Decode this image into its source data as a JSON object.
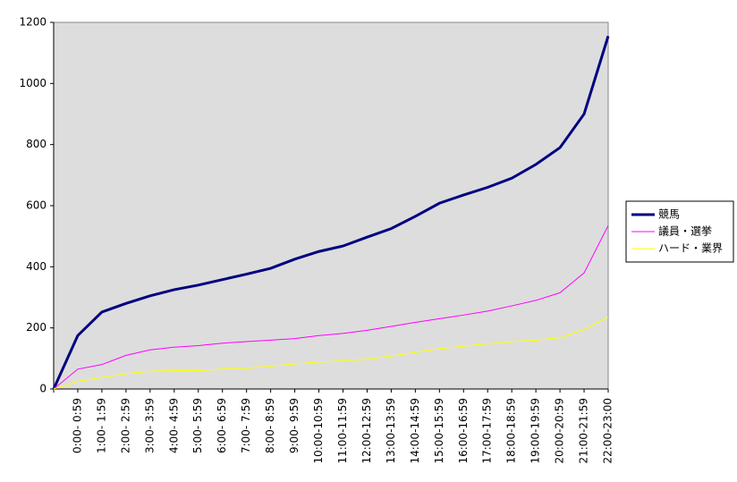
{
  "chart_data": {
    "type": "line",
    "categories": [
      null,
      "0:00- 0:59",
      "1:00- 1:59",
      "2:00- 2:59",
      "3:00- 3:59",
      "4:00- 4:59",
      "5:00- 5:59",
      "6:00- 6:59",
      "7:00- 7:59",
      "8:00- 8:59",
      "9:00- 9:59",
      "10:00-10:59",
      "11:00-11:59",
      "12:00-12:59",
      "13:00-13:59",
      "14:00-14:59",
      "15:00-15:59",
      "16:00-16:59",
      "17:00-17:59",
      "18:00-18:59",
      "19:00-19:59",
      "20:00-20:59",
      "21:00-21:59",
      "22:00-23:00"
    ],
    "series": [
      {
        "name": "競馬",
        "color": "#000080",
        "values": [
          0,
          175,
          252,
          280,
          305,
          325,
          340,
          358,
          376,
          395,
          425,
          450,
          468,
          497,
          525,
          565,
          608,
          635,
          660,
          690,
          735,
          790,
          900,
          1155
        ]
      },
      {
        "name": "議員・選挙",
        "color": "#ff00ff",
        "values": [
          0,
          65,
          80,
          110,
          128,
          137,
          142,
          150,
          155,
          160,
          165,
          175,
          182,
          192,
          205,
          218,
          230,
          242,
          255,
          272,
          290,
          315,
          380,
          535
        ]
      },
      {
        "name": "ハード・業界",
        "color": "#ffff00",
        "values": [
          0,
          25,
          38,
          50,
          58,
          60,
          60,
          65,
          68,
          75,
          82,
          88,
          92,
          98,
          108,
          120,
          132,
          140,
          148,
          155,
          160,
          168,
          195,
          235
        ]
      }
    ],
    "ylim": [
      0,
      1200
    ],
    "yticks": [
      0,
      200,
      400,
      600,
      800,
      1000,
      1200
    ],
    "grid": false,
    "legend": "right"
  }
}
